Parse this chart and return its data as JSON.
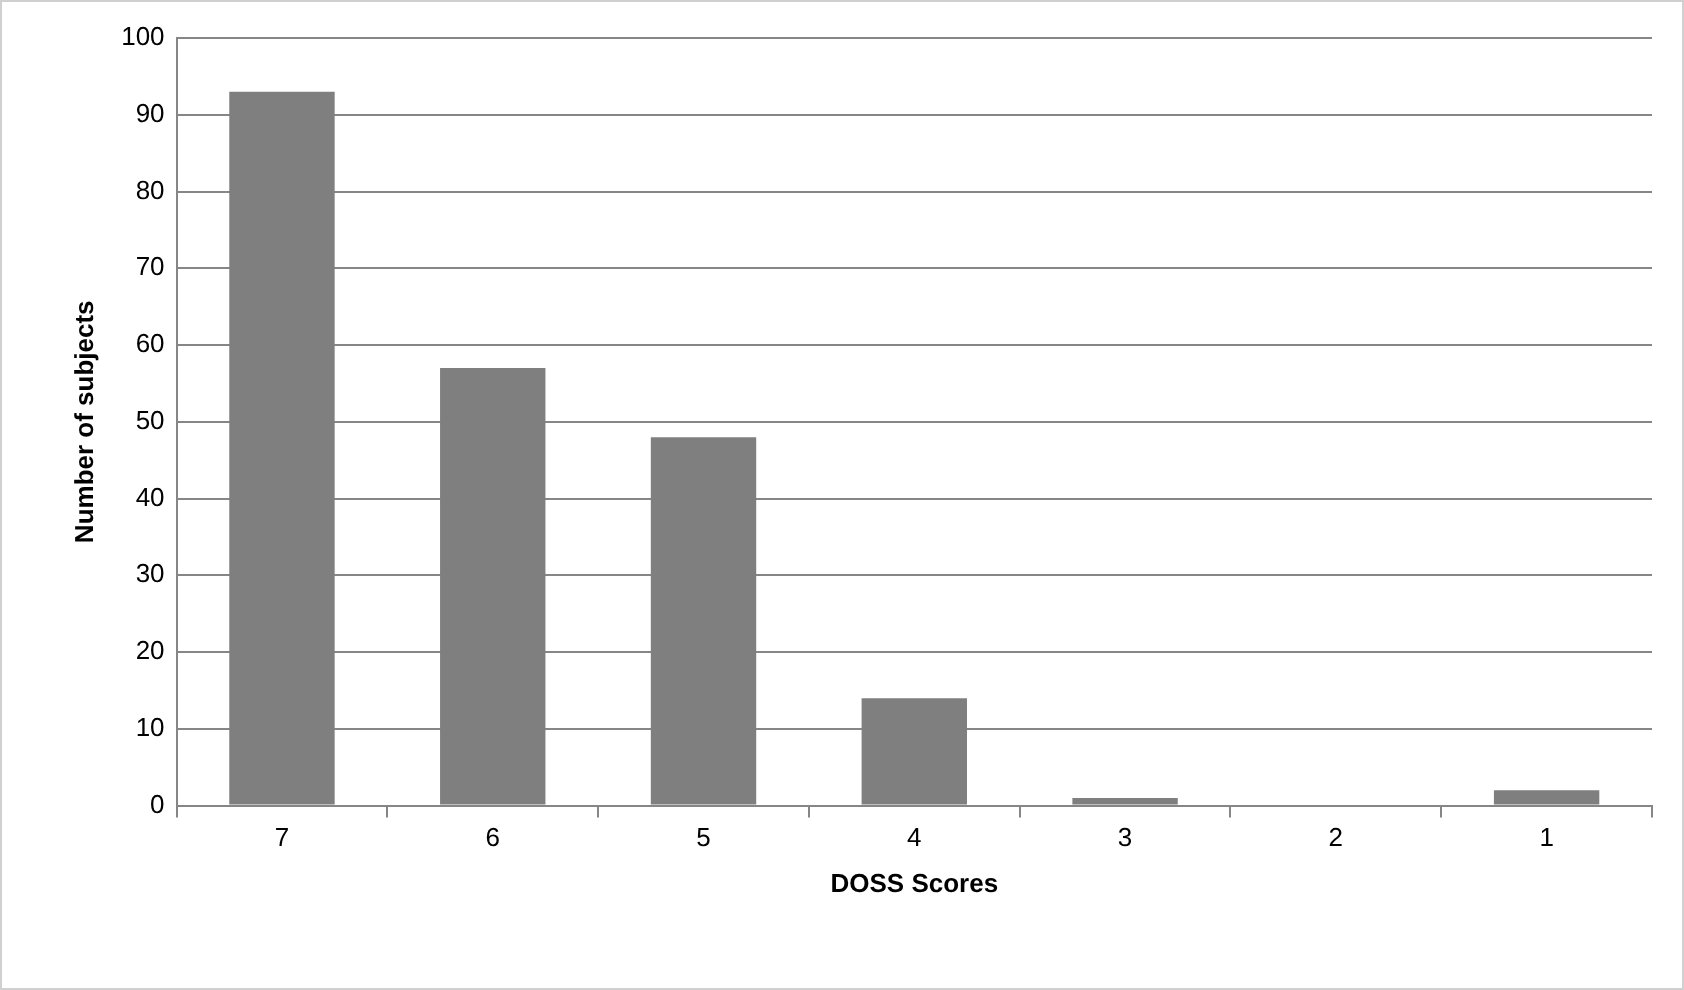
{
  "chart_data": {
    "type": "bar",
    "xlabel": "DOSS Scores",
    "ylabel": "Number of subjects",
    "categories": [
      "7",
      "6",
      "5",
      "4",
      "3",
      "2",
      "1"
    ],
    "values": [
      93,
      57,
      48,
      14,
      1,
      0,
      2
    ],
    "color": "#7f7f7f",
    "ylim": [
      0,
      100
    ],
    "yticks": [
      0,
      10,
      20,
      30,
      40,
      50,
      60,
      70,
      80,
      90,
      100
    ],
    "grid": "y"
  }
}
